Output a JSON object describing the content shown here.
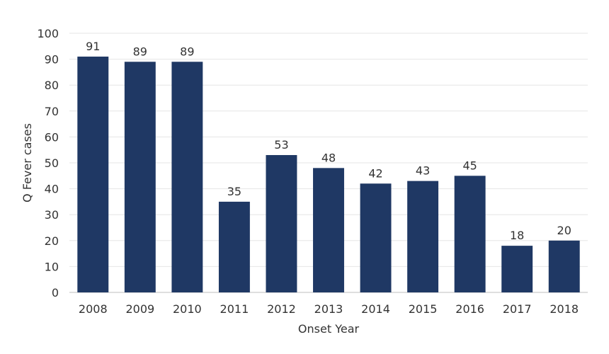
{
  "chart_data": {
    "type": "bar",
    "categories": [
      "2008",
      "2009",
      "2010",
      "2011",
      "2012",
      "2013",
      "2014",
      "2015",
      "2016",
      "2017",
      "2018"
    ],
    "values": [
      91,
      89,
      89,
      35,
      53,
      48,
      42,
      43,
      45,
      18,
      20
    ],
    "data_labels": [
      "91",
      "89",
      "89",
      "35",
      "53",
      "48",
      "42",
      "43",
      "45",
      "18",
      "20"
    ],
    "title": "",
    "xlabel": "Onset Year",
    "ylabel": "Q Fever cases",
    "ylim": [
      0,
      100
    ],
    "yticks": [
      "0",
      "10",
      "20",
      "30",
      "40",
      "50",
      "60",
      "70",
      "80",
      "90",
      "100"
    ],
    "ytick_values": [
      0,
      10,
      20,
      30,
      40,
      50,
      60,
      70,
      80,
      90,
      100
    ],
    "grid": true,
    "legend": "none",
    "colors": {
      "bar": "#1f3864",
      "grid": "#e6e6e6",
      "text": "#333333"
    }
  }
}
